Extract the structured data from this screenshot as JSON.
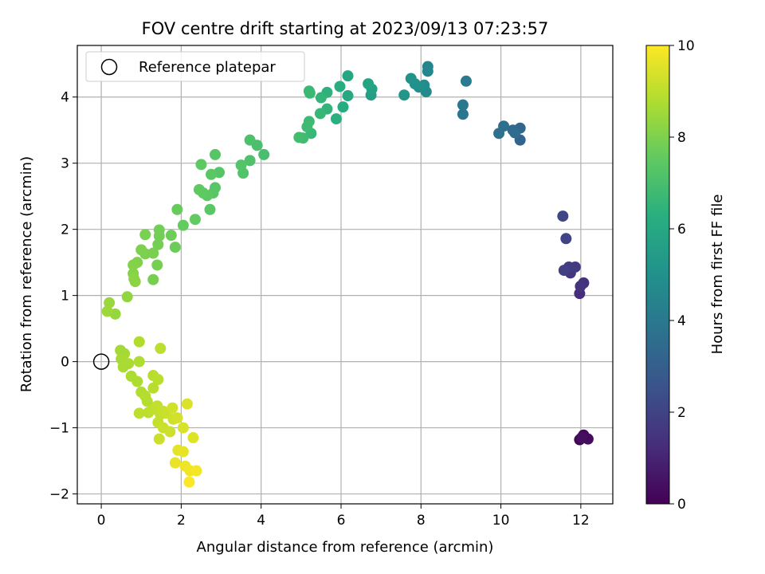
{
  "chart_data": {
    "type": "scatter",
    "title": "FOV centre drift starting at 2023/09/13 07:23:57",
    "xlabel": "Angular distance from reference (arcmin)",
    "ylabel": "Rotation from reference (arcmin)",
    "xlim": [
      -0.6,
      12.8
    ],
    "ylim": [
      -2.15,
      4.78
    ],
    "xticks": [
      0,
      2,
      4,
      6,
      8,
      10,
      12
    ],
    "yticks": [
      -2,
      -1,
      0,
      1,
      2,
      3,
      4
    ],
    "xtick_labels": [
      "0",
      "2",
      "4",
      "6",
      "8",
      "10",
      "12"
    ],
    "ytick_labels": [
      "−2",
      "−1",
      "0",
      "1",
      "2",
      "3",
      "4"
    ],
    "grid": true,
    "legend": {
      "placement": "upper-left",
      "entries": [
        {
          "label": "Reference platepar",
          "marker": "open-circle"
        }
      ]
    },
    "reference_point": {
      "x": 0,
      "y": 0
    },
    "colorbar": {
      "label": "Hours from first FF file",
      "range": [
        0,
        10
      ],
      "ticks": [
        0,
        2,
        4,
        6,
        8,
        10
      ],
      "colormap": "viridis"
    },
    "points": [
      {
        "x": 11.97,
        "y": -1.18,
        "h": 0.1
      },
      {
        "x": 12.07,
        "y": -1.11,
        "h": 0.2
      },
      {
        "x": 12.18,
        "y": -1.17,
        "h": 0.3
      },
      {
        "x": 12.02,
        "y": -1.15,
        "h": 0.4
      },
      {
        "x": 11.97,
        "y": 1.03,
        "h": 1.3
      },
      {
        "x": 12.07,
        "y": 1.19,
        "h": 1.4
      },
      {
        "x": 11.99,
        "y": 1.14,
        "h": 1.5
      },
      {
        "x": 11.74,
        "y": 1.34,
        "h": 1.6
      },
      {
        "x": 11.86,
        "y": 1.43,
        "h": 1.7
      },
      {
        "x": 11.7,
        "y": 1.43,
        "h": 1.8
      },
      {
        "x": 11.58,
        "y": 1.38,
        "h": 1.9
      },
      {
        "x": 11.63,
        "y": 1.86,
        "h": 2.0
      },
      {
        "x": 11.55,
        "y": 2.2,
        "h": 2.1
      },
      {
        "x": 10.48,
        "y": 3.35,
        "h": 3.2
      },
      {
        "x": 10.48,
        "y": 3.53,
        "h": 3.3
      },
      {
        "x": 10.3,
        "y": 3.5,
        "h": 3.4
      },
      {
        "x": 10.35,
        "y": 3.46,
        "h": 3.5
      },
      {
        "x": 10.07,
        "y": 3.56,
        "h": 3.6
      },
      {
        "x": 9.95,
        "y": 3.45,
        "h": 3.7
      },
      {
        "x": 9.05,
        "y": 3.74,
        "h": 3.9
      },
      {
        "x": 9.05,
        "y": 3.88,
        "h": 4.0
      },
      {
        "x": 9.13,
        "y": 4.24,
        "h": 4.1
      },
      {
        "x": 8.17,
        "y": 4.46,
        "h": 4.5
      },
      {
        "x": 8.17,
        "y": 4.39,
        "h": 4.6
      },
      {
        "x": 8.13,
        "y": 4.08,
        "h": 4.7
      },
      {
        "x": 8.08,
        "y": 4.18,
        "h": 4.8
      },
      {
        "x": 7.95,
        "y": 4.15,
        "h": 4.9
      },
      {
        "x": 7.85,
        "y": 4.2,
        "h": 5.0
      },
      {
        "x": 7.75,
        "y": 4.28,
        "h": 5.1
      },
      {
        "x": 7.58,
        "y": 4.03,
        "h": 5.2
      },
      {
        "x": 6.75,
        "y": 4.03,
        "h": 5.6
      },
      {
        "x": 6.77,
        "y": 4.12,
        "h": 5.7
      },
      {
        "x": 6.68,
        "y": 4.2,
        "h": 5.8
      },
      {
        "x": 6.17,
        "y": 4.32,
        "h": 5.9
      },
      {
        "x": 6.17,
        "y": 4.02,
        "h": 6.0
      },
      {
        "x": 6.05,
        "y": 3.85,
        "h": 6.1
      },
      {
        "x": 5.97,
        "y": 4.16,
        "h": 6.2
      },
      {
        "x": 5.88,
        "y": 3.67,
        "h": 6.3
      },
      {
        "x": 5.65,
        "y": 4.07,
        "h": 6.4
      },
      {
        "x": 5.65,
        "y": 3.82,
        "h": 6.5
      },
      {
        "x": 5.5,
        "y": 3.99,
        "h": 6.55
      },
      {
        "x": 5.48,
        "y": 3.75,
        "h": 6.6
      },
      {
        "x": 5.25,
        "y": 3.45,
        "h": 6.65
      },
      {
        "x": 5.22,
        "y": 4.06,
        "h": 6.7
      },
      {
        "x": 5.2,
        "y": 4.09,
        "h": 6.72
      },
      {
        "x": 5.2,
        "y": 3.63,
        "h": 6.75
      },
      {
        "x": 5.15,
        "y": 3.55,
        "h": 6.8
      },
      {
        "x": 5.05,
        "y": 3.38,
        "h": 6.85
      },
      {
        "x": 4.95,
        "y": 3.39,
        "h": 6.9
      },
      {
        "x": 4.07,
        "y": 3.13,
        "h": 7.0
      },
      {
        "x": 3.9,
        "y": 3.27,
        "h": 7.05
      },
      {
        "x": 3.72,
        "y": 3.35,
        "h": 7.1
      },
      {
        "x": 3.72,
        "y": 3.04,
        "h": 7.15
      },
      {
        "x": 3.55,
        "y": 2.85,
        "h": 7.2
      },
      {
        "x": 3.5,
        "y": 2.97,
        "h": 7.25
      },
      {
        "x": 2.95,
        "y": 2.86,
        "h": 7.3
      },
      {
        "x": 2.85,
        "y": 3.13,
        "h": 7.32
      },
      {
        "x": 2.85,
        "y": 2.63,
        "h": 7.35
      },
      {
        "x": 2.8,
        "y": 2.55,
        "h": 7.38
      },
      {
        "x": 2.75,
        "y": 2.83,
        "h": 7.4
      },
      {
        "x": 2.72,
        "y": 2.3,
        "h": 7.43
      },
      {
        "x": 2.65,
        "y": 2.51,
        "h": 7.45
      },
      {
        "x": 2.55,
        "y": 2.55,
        "h": 7.48
      },
      {
        "x": 2.5,
        "y": 2.98,
        "h": 7.5
      },
      {
        "x": 2.45,
        "y": 2.6,
        "h": 7.52
      },
      {
        "x": 2.35,
        "y": 2.15,
        "h": 7.55
      },
      {
        "x": 2.05,
        "y": 2.06,
        "h": 7.6
      },
      {
        "x": 1.9,
        "y": 2.3,
        "h": 7.65
      },
      {
        "x": 1.85,
        "y": 1.73,
        "h": 7.7
      },
      {
        "x": 1.75,
        "y": 1.91,
        "h": 7.75
      },
      {
        "x": 1.45,
        "y": 1.99,
        "h": 7.8
      },
      {
        "x": 1.45,
        "y": 1.9,
        "h": 7.82
      },
      {
        "x": 1.42,
        "y": 1.77,
        "h": 7.85
      },
      {
        "x": 1.4,
        "y": 1.46,
        "h": 7.88
      },
      {
        "x": 1.3,
        "y": 1.24,
        "h": 7.9
      },
      {
        "x": 1.3,
        "y": 1.64,
        "h": 7.92
      },
      {
        "x": 1.1,
        "y": 1.92,
        "h": 7.95
      },
      {
        "x": 1.1,
        "y": 1.63,
        "h": 7.98
      },
      {
        "x": 1.0,
        "y": 1.69,
        "h": 8.0
      },
      {
        "x": 0.9,
        "y": 1.5,
        "h": 8.05
      },
      {
        "x": 0.8,
        "y": 1.46,
        "h": 8.1
      },
      {
        "x": 0.8,
        "y": 1.33,
        "h": 8.15
      },
      {
        "x": 0.82,
        "y": 1.25,
        "h": 8.2
      },
      {
        "x": 0.85,
        "y": 1.21,
        "h": 8.25
      },
      {
        "x": 0.65,
        "y": 0.98,
        "h": 8.3
      },
      {
        "x": 0.35,
        "y": 0.72,
        "h": 8.4
      },
      {
        "x": 0.2,
        "y": 0.89,
        "h": 8.45
      },
      {
        "x": 0.15,
        "y": 0.76,
        "h": 8.5
      },
      {
        "x": 0.48,
        "y": 0.17,
        "h": 8.6
      },
      {
        "x": 0.58,
        "y": 0.12,
        "h": 8.62
      },
      {
        "x": 0.5,
        "y": 0.04,
        "h": 8.65
      },
      {
        "x": 0.55,
        "y": -0.08,
        "h": 8.68
      },
      {
        "x": 0.68,
        "y": -0.03,
        "h": 8.7
      },
      {
        "x": 0.75,
        "y": -0.22,
        "h": 8.72
      },
      {
        "x": 0.9,
        "y": -0.3,
        "h": 8.75
      },
      {
        "x": 0.95,
        "y": 0.0,
        "h": 8.78
      },
      {
        "x": 0.95,
        "y": 0.3,
        "h": 8.8
      },
      {
        "x": 1.0,
        "y": -0.46,
        "h": 8.82
      },
      {
        "x": 1.1,
        "y": -0.52,
        "h": 8.85
      },
      {
        "x": 1.15,
        "y": -0.6,
        "h": 8.88
      },
      {
        "x": 1.3,
        "y": -0.21,
        "h": 8.9
      },
      {
        "x": 1.3,
        "y": -0.4,
        "h": 8.92
      },
      {
        "x": 1.42,
        "y": -0.27,
        "h": 8.95
      },
      {
        "x": 1.48,
        "y": 0.2,
        "h": 8.98
      },
      {
        "x": 0.95,
        "y": -0.78,
        "h": 9.0
      },
      {
        "x": 1.18,
        "y": -0.77,
        "h": 9.02
      },
      {
        "x": 1.3,
        "y": -0.72,
        "h": 9.05
      },
      {
        "x": 1.4,
        "y": -0.67,
        "h": 9.08
      },
      {
        "x": 1.48,
        "y": -0.8,
        "h": 9.1
      },
      {
        "x": 1.42,
        "y": -0.92,
        "h": 9.12
      },
      {
        "x": 1.55,
        "y": -0.75,
        "h": 9.15
      },
      {
        "x": 1.62,
        "y": -0.78,
        "h": 9.18
      },
      {
        "x": 1.45,
        "y": -1.17,
        "h": 9.2
      },
      {
        "x": 1.55,
        "y": -1.0,
        "h": 9.22
      },
      {
        "x": 1.72,
        "y": -1.06,
        "h": 9.25
      },
      {
        "x": 1.8,
        "y": -0.87,
        "h": 9.28
      },
      {
        "x": 1.78,
        "y": -0.7,
        "h": 9.3
      },
      {
        "x": 1.9,
        "y": -0.85,
        "h": 9.35
      },
      {
        "x": 2.05,
        "y": -1.0,
        "h": 9.4
      },
      {
        "x": 2.15,
        "y": -0.64,
        "h": 9.45
      },
      {
        "x": 2.3,
        "y": -1.15,
        "h": 9.5
      },
      {
        "x": 1.92,
        "y": -1.34,
        "h": 9.6
      },
      {
        "x": 2.05,
        "y": -1.36,
        "h": 9.65
      },
      {
        "x": 1.85,
        "y": -1.53,
        "h": 9.7
      },
      {
        "x": 2.1,
        "y": -1.58,
        "h": 9.75
      },
      {
        "x": 2.22,
        "y": -1.65,
        "h": 9.8
      },
      {
        "x": 2.38,
        "y": -1.65,
        "h": 9.85
      },
      {
        "x": 2.2,
        "y": -1.82,
        "h": 9.95
      }
    ]
  }
}
